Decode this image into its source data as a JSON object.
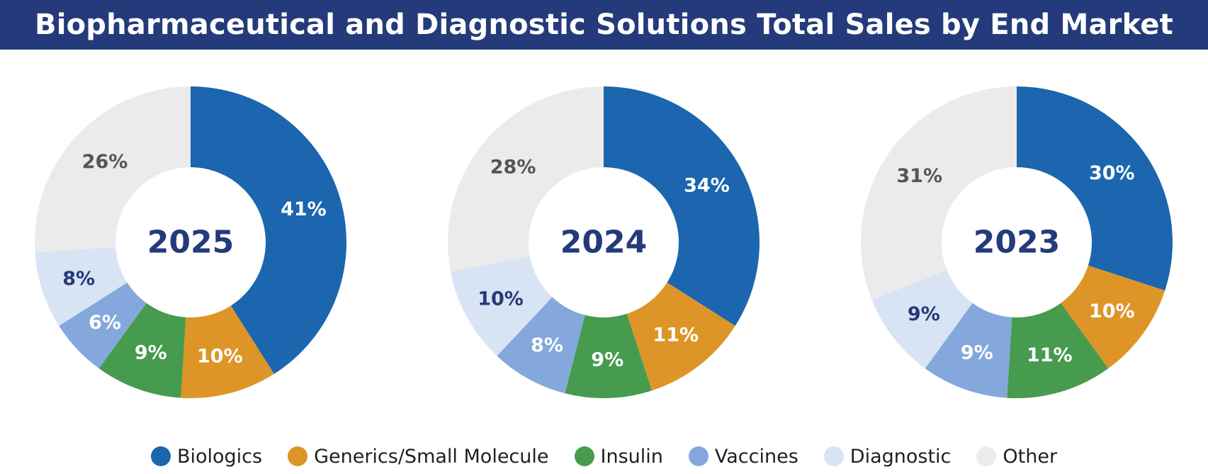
{
  "chart_data": {
    "title": "Biopharmaceutical and Diagnostic Solutions Total Sales by End Market",
    "type": "pie",
    "categories": [
      "Biologics",
      "Generics/Small Molecule",
      "Insulin",
      "Vaccines",
      "Diagnostic",
      "Other"
    ],
    "colors": [
      "#1b66ae",
      "#de9528",
      "#469b4f",
      "#84a8dc",
      "#d8e4f4",
      "#ebebeb"
    ],
    "label_colors": [
      "#ffffff",
      "#ffffff",
      "#ffffff",
      "#ffffff",
      "#243a7a",
      "#555555"
    ],
    "charts": [
      {
        "year": "2025",
        "values": [
          41,
          10,
          9,
          6,
          8,
          26
        ],
        "labels": [
          "41%",
          "10%",
          "9%",
          "6%",
          "8%",
          "26%"
        ]
      },
      {
        "year": "2024",
        "values": [
          34,
          11,
          9,
          8,
          10,
          28
        ],
        "labels": [
          "34%",
          "11%",
          "9%",
          "8%",
          "10%",
          "28%"
        ]
      },
      {
        "year": "2023",
        "values": [
          30,
          10,
          11,
          9,
          9,
          31
        ],
        "labels": [
          "30%",
          "10%",
          "11%",
          "9%",
          "9%",
          "31%"
        ]
      }
    ]
  }
}
